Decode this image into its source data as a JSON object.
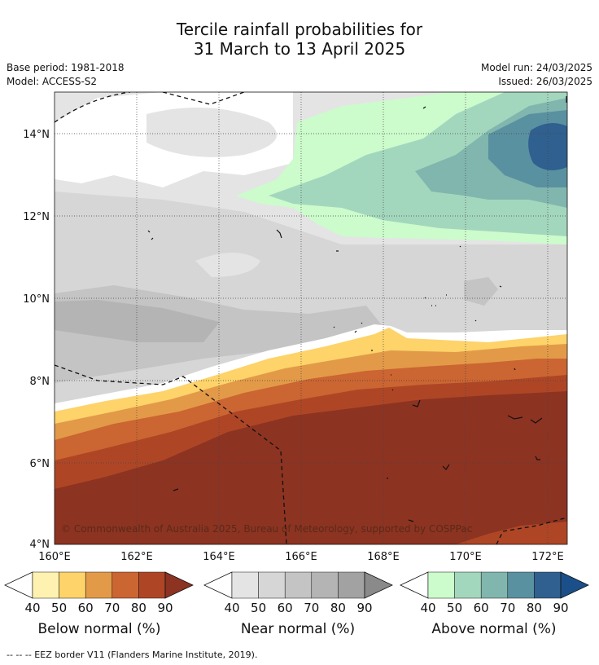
{
  "title_line1": "Tercile rainfall probabilities for",
  "title_line2": "31 March to 13 April 2025",
  "base_period": "Base period: 1981-2018",
  "model": "Model: ACCESS-S2",
  "model_run": "Model run: 24/03/2025",
  "issued": "Issued: 26/03/2025",
  "copyright": "© Commonwealth of Australia 2025, Bureau of Meteorology, supported by COSPPac",
  "footer": "-- -- -- EEZ border V11 (Flanders Marine Institute, 2019).",
  "lat_labels": [
    "14°N",
    "12°N",
    "10°N",
    "8°N",
    "6°N",
    "4°N"
  ],
  "lon_labels": [
    "160°E",
    "162°E",
    "164°E",
    "166°E",
    "168°E",
    "170°E",
    "172°E"
  ],
  "colorbars": [
    {
      "title": "Below normal (%)",
      "ticks": [
        "40",
        "50",
        "60",
        "70",
        "80",
        "90"
      ],
      "colors": [
        "#fff2b0",
        "#fdd36a",
        "#e39a48",
        "#cb6532",
        "#ae4626",
        "#8d3322"
      ]
    },
    {
      "title": "Near normal (%)",
      "ticks": [
        "40",
        "50",
        "60",
        "70",
        "80",
        "90"
      ],
      "colors": [
        "#e4e4e4",
        "#d6d6d6",
        "#c4c4c4",
        "#b4b4b4",
        "#a2a2a2",
        "#8a8a8a"
      ]
    },
    {
      "title": "Above normal (%)",
      "ticks": [
        "40",
        "50",
        "60",
        "70",
        "80",
        "90"
      ],
      "colors": [
        "#ccfbcc",
        "#a3d7bd",
        "#80b6ae",
        "#5a91a0",
        "#30608f",
        "#1a4f8a"
      ]
    }
  ]
}
